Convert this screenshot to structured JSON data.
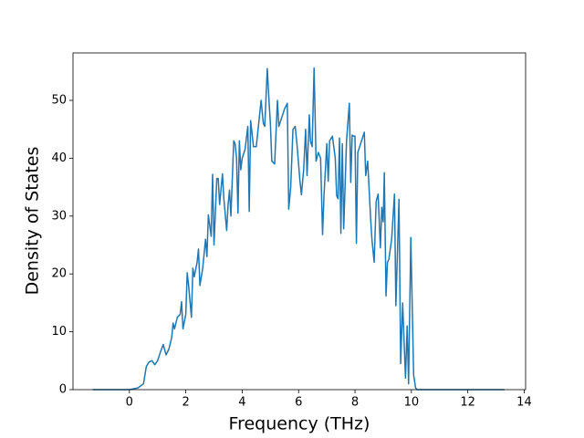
{
  "chart_data": {
    "type": "line",
    "xlabel": "Frequency (THz)",
    "ylabel": "Density of States",
    "x": [
      -1.3,
      0,
      0.3,
      0.5,
      0.6,
      0.7,
      0.8,
      0.9,
      1.0,
      1.1,
      1.2,
      1.3,
      1.4,
      1.5,
      1.55,
      1.6,
      1.7,
      1.8,
      1.85,
      1.9,
      2.0,
      2.05,
      2.1,
      2.2,
      2.25,
      2.3,
      2.4,
      2.45,
      2.5,
      2.6,
      2.7,
      2.75,
      2.8,
      2.9,
      2.95,
      3.0,
      3.1,
      3.15,
      3.2,
      3.3,
      3.35,
      3.45,
      3.5,
      3.55,
      3.6,
      3.7,
      3.75,
      3.8,
      3.85,
      3.9,
      3.95,
      4.0,
      4.1,
      4.2,
      4.25,
      4.3,
      4.4,
      4.5,
      4.67,
      4.75,
      4.8,
      4.89,
      4.95,
      5.0,
      5.05,
      5.15,
      5.25,
      5.3,
      5.4,
      5.5,
      5.6,
      5.65,
      5.72,
      5.8,
      5.88,
      5.95,
      6.05,
      6.1,
      6.18,
      6.25,
      6.3,
      6.38,
      6.42,
      6.48,
      6.55,
      6.62,
      6.7,
      6.78,
      6.85,
      6.9,
      7.0,
      7.05,
      7.1,
      7.2,
      7.3,
      7.35,
      7.4,
      7.45,
      7.5,
      7.55,
      7.6,
      7.7,
      7.8,
      7.85,
      7.9,
      7.95,
      8.0,
      8.05,
      8.1,
      8.33,
      8.38,
      8.45,
      8.55,
      8.6,
      8.68,
      8.75,
      8.82,
      8.9,
      8.95,
      9.0,
      9.04,
      9.1,
      9.15,
      9.2,
      9.3,
      9.4,
      9.45,
      9.56,
      9.62,
      9.69,
      9.79,
      9.85,
      9.9,
      9.98,
      10.08,
      10.15,
      10.2,
      13.3
    ],
    "values": [
      0,
      0,
      0.3,
      1,
      4,
      4.8,
      5,
      4.3,
      5,
      6.5,
      7.8,
      6,
      7,
      9,
      11.5,
      10.5,
      12.5,
      13,
      15.2,
      10.5,
      13,
      20.2,
      18,
      12.5,
      21,
      19.5,
      22,
      24.3,
      18,
      21,
      26,
      23,
      30.2,
      26.5,
      37.2,
      25,
      36.5,
      36.5,
      32,
      37.3,
      33,
      27.5,
      32,
      34.5,
      30,
      43,
      42.5,
      40,
      30.5,
      43,
      38,
      40,
      41.5,
      45.5,
      30.8,
      46.5,
      42,
      42,
      50,
      46,
      45.5,
      55.5,
      50,
      46,
      39.5,
      39,
      50,
      45.5,
      47,
      48.5,
      49.5,
      31.2,
      35,
      45,
      45.5,
      42,
      36,
      33.7,
      38,
      45,
      37,
      47.5,
      43,
      42,
      55.6,
      39.5,
      41,
      40,
      26.8,
      33.5,
      42.5,
      36,
      43,
      43.8,
      40,
      33.5,
      33,
      43.5,
      27,
      42.5,
      27.8,
      43,
      49.5,
      35.8,
      44,
      43.8,
      43.8,
      25.3,
      41,
      44.5,
      37,
      39.5,
      30,
      26,
      22,
      32.5,
      33.8,
      24.5,
      31.5,
      29,
      37.5,
      16.2,
      22,
      22.5,
      26,
      33.8,
      14.5,
      32.9,
      4.5,
      15,
      2,
      11,
      1,
      26.3,
      2.5,
      0.3,
      0,
      0
    ],
    "color": "#1f77b4",
    "xlim": [
      -2.0,
      14.05
    ],
    "xticks": [
      0,
      2,
      4,
      6,
      8,
      10,
      12,
      14
    ],
    "ylim": [
      0,
      58.2
    ],
    "yticks": [
      0,
      10,
      20,
      30,
      40,
      50
    ]
  }
}
